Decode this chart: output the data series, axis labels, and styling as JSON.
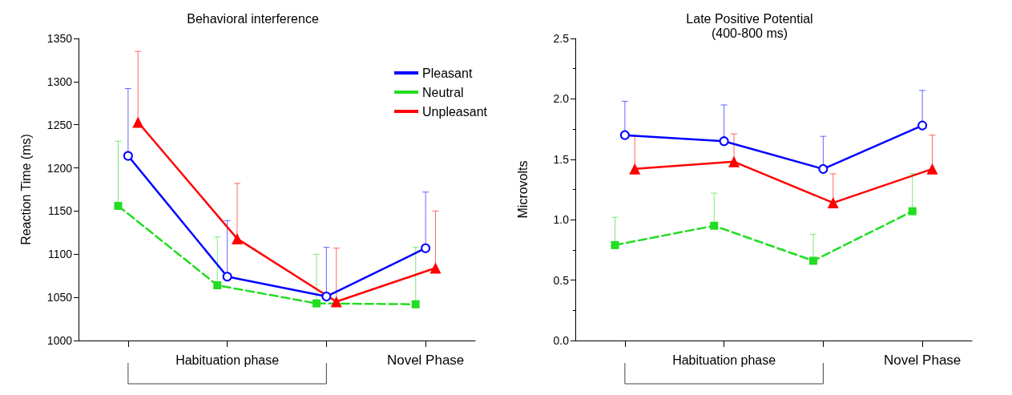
{
  "chart_data": [
    {
      "type": "line",
      "title": "Behavioral interference",
      "ylabel": "Reaction Time (ms)",
      "categories": [
        null,
        null,
        null,
        null
      ],
      "series": [
        {
          "name": "Pleasant",
          "color": "#0000ff",
          "marker": "circle",
          "line_style": "solid",
          "values": [
            1214,
            1074,
            1051,
            1107
          ],
          "errors": [
            [
              1214,
              1292
            ],
            [
              1074,
              1139
            ],
            [
              1051,
              1108
            ],
            [
              1107,
              1172
            ]
          ]
        },
        {
          "name": "Neutral",
          "color": "#22dd22",
          "marker": "square",
          "line_style": "dashed",
          "values": [
            1156,
            1064,
            1043,
            1042
          ],
          "errors": [
            [
              1156,
              1231
            ],
            [
              1064,
              1120
            ],
            [
              1043,
              1100
            ],
            [
              1042,
              1108
            ]
          ]
        },
        {
          "name": "Unpleasant",
          "color": "#ff0000",
          "marker": "triangle",
          "line_style": "solid",
          "values": [
            1253,
            1118,
            1045,
            1084
          ],
          "errors": [
            [
              1253,
              1335
            ],
            [
              1118,
              1182
            ],
            [
              1045,
              1107
            ],
            [
              1084,
              1150
            ]
          ]
        }
      ],
      "ylim": [
        1000,
        1350
      ],
      "yticks": [
        1000,
        1050,
        1100,
        1150,
        1200,
        1250,
        1300,
        1350
      ],
      "grid": false,
      "legend": "top right",
      "annotations": [
        "Habituation phase",
        "Novel Phase"
      ]
    },
    {
      "type": "line",
      "title": "Late Positive Potential",
      "subtitle": "(400-800 ms)",
      "ylabel": "Microvolts",
      "categories": [
        null,
        null,
        null,
        null
      ],
      "series": [
        {
          "color": "#0000ff",
          "marker": "circle",
          "line_style": "solid",
          "values": [
            1.7,
            1.65,
            1.42,
            1.78
          ],
          "errors": [
            [
              1.7,
              1.98
            ],
            [
              1.65,
              1.95
            ],
            [
              1.42,
              1.69
            ],
            [
              1.78,
              2.07
            ]
          ]
        },
        {
          "color": "#22dd22",
          "marker": "square",
          "line_style": "dashed",
          "values": [
            0.79,
            0.95,
            0.66,
            1.07
          ],
          "errors": [
            [
              0.79,
              1.02
            ],
            [
              0.95,
              1.22
            ],
            [
              0.66,
              0.88
            ],
            [
              1.07,
              1.38
            ]
          ]
        },
        {
          "color": "#ff0000",
          "marker": "triangle",
          "line_style": "solid",
          "values": [
            1.42,
            1.48,
            1.14,
            1.42
          ],
          "errors": [
            [
              1.42,
              1.69
            ],
            [
              1.48,
              1.71
            ],
            [
              1.14,
              1.38
            ],
            [
              1.42,
              1.7
            ]
          ]
        }
      ],
      "ylim": [
        0,
        2.5
      ],
      "yticks": [
        {
          "value": 0,
          "label": "0.0"
        },
        {
          "value": 0.5,
          "label": "0.5"
        },
        {
          "value": 1,
          "label": "1.0"
        },
        {
          "value": 1.5,
          "label": "1.5"
        },
        {
          "value": 2,
          "label": "2.0"
        },
        {
          "value": 2.5,
          "label": "2.5"
        }
      ],
      "grid": false,
      "legend": false,
      "annotations": [
        "Habituation phase",
        "Novel Phase"
      ]
    }
  ]
}
